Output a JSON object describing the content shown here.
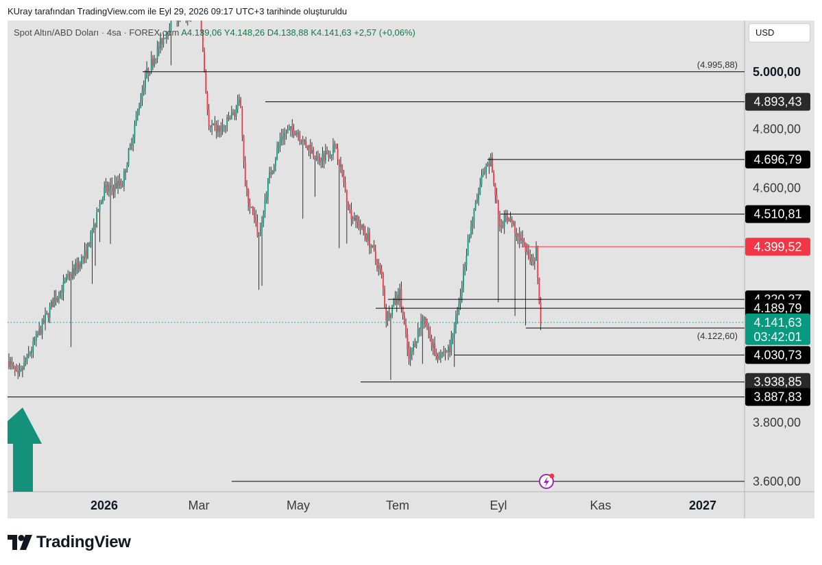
{
  "caption": "KUray tarafından TradingView.com ile Eyl 29, 2026 09:17 UTC+3 tarihinde oluşturuldu",
  "legend": {
    "symbol": "Spot Altın/ABD Doları · 4sa · FOREX.com",
    "ohlc": "A4.139,06  Y4.148,26  D4.138,88  K4.141,63  +2,57 (+0,06%)"
  },
  "currency_button": "USD",
  "brand": "TradingView",
  "icons": {
    "logo": "tradingview-logo-icon",
    "arrow": "up-arrow-icon",
    "alert": "lightning-icon"
  },
  "colors": {
    "background": "#e3e3e3",
    "up": "#089981",
    "down": "#f23645",
    "level": "#000000",
    "current": "#f23645",
    "arrow": "#13917b"
  },
  "chart_data": {
    "type": "candlestick",
    "title": "Spot Altın/ABD Doları · 4sa · FOREX.com",
    "x_ticks": [
      {
        "label": "2026",
        "bold": true
      },
      {
        "label": "Mar",
        "bold": false
      },
      {
        "label": "May",
        "bold": false
      },
      {
        "label": "Tem",
        "bold": false
      },
      {
        "label": "Eyl",
        "bold": false
      },
      {
        "label": "Kas",
        "bold": false
      },
      {
        "label": "2027",
        "bold": true
      }
    ],
    "y_ticks": [
      "5.000,00",
      "4.800,00",
      "4.600,00",
      "3.800,00",
      "3.600,00"
    ],
    "ylim": [
      3560,
      5160
    ],
    "price_path": [
      [
        0,
        4010
      ],
      [
        2,
        3950
      ],
      [
        10,
        4220
      ],
      [
        17,
        4380
      ],
      [
        21,
        4590
      ],
      [
        25,
        4620
      ],
      [
        30,
        4980
      ],
      [
        36,
        5180
      ],
      [
        42,
        5200
      ],
      [
        44,
        4800
      ],
      [
        47,
        4800
      ],
      [
        51,
        4890
      ],
      [
        52,
        4600
      ],
      [
        55,
        4430
      ],
      [
        57,
        4620
      ],
      [
        60,
        4780
      ],
      [
        63,
        4800
      ],
      [
        68,
        4700
      ],
      [
        72,
        4740
      ],
      [
        75,
        4520
      ],
      [
        79,
        4430
      ],
      [
        82,
        4300
      ],
      [
        83,
        4160
      ],
      [
        86,
        4240
      ],
      [
        88,
        4010
      ],
      [
        91,
        4160
      ],
      [
        94,
        4030
      ],
      [
        97,
        4050
      ],
      [
        99,
        4200
      ],
      [
        101,
        4420
      ],
      [
        104,
        4630
      ],
      [
        106,
        4690
      ],
      [
        108,
        4480
      ],
      [
        110,
        4500
      ],
      [
        113,
        4410
      ],
      [
        115,
        4330
      ],
      [
        116,
        4390
      ],
      [
        117,
        4140
      ]
    ],
    "levels": [
      {
        "price": 4995.88,
        "label": "5.000,00",
        "line_label": "(4.995,88)",
        "style": "tick",
        "color": "#000000"
      },
      {
        "price": 4893.43,
        "label": "4.893,43",
        "style": "badge-dark",
        "color": "#000000"
      },
      {
        "price": 4696.79,
        "label": "4.696,79",
        "style": "badge-black",
        "color": "#000000"
      },
      {
        "price": 4510.81,
        "label": "4.510,81",
        "style": "badge-black",
        "color": "#000000"
      },
      {
        "price": 4399.52,
        "label": "4.399,52",
        "style": "badge-red",
        "color": "#f23645"
      },
      {
        "price": 4220.27,
        "label": "4.220,27",
        "style": "badge-black",
        "color": "#000000"
      },
      {
        "price": 4189.79,
        "label": "4.189,79",
        "style": "badge-black",
        "color": "#000000"
      },
      {
        "price": 4122.6,
        "label": "",
        "line_label": "(4.122,60)",
        "style": "none",
        "color": "#000000"
      },
      {
        "price": 4030.73,
        "label": "4.030,73",
        "style": "badge-black",
        "color": "#000000"
      },
      {
        "price": 3938.85,
        "label": "3.938,85",
        "style": "badge-dark",
        "color": "#000000"
      },
      {
        "price": 3887.83,
        "label": "3.887,83",
        "style": "badge-black",
        "color": "#000000"
      },
      {
        "price": 3600.0,
        "label": "",
        "style": "none",
        "color": "#000000"
      }
    ],
    "current": {
      "price": 4141.63,
      "label": "4.141,63",
      "countdown": "03:42:01",
      "color": "#089981"
    }
  }
}
